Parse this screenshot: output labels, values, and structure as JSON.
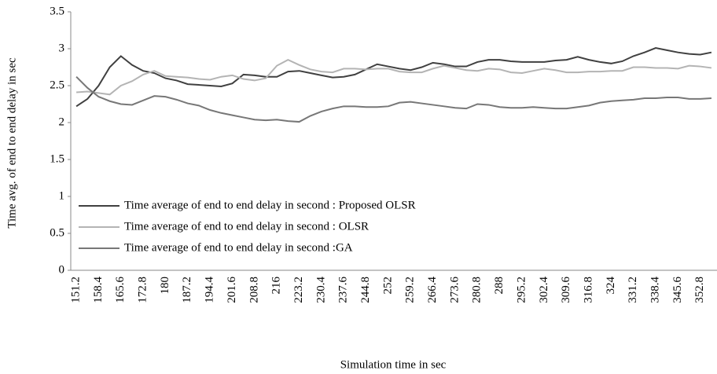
{
  "chart_data": {
    "type": "line",
    "x_label": "Simulation time in sec",
    "y_label": "Time avg. of end to end delay in sec",
    "categories": [
      "151.2",
      null,
      "158.4",
      null,
      "165.6",
      null,
      "172.8",
      null,
      "180",
      null,
      "187.2",
      null,
      "194.4",
      null,
      "201.6",
      null,
      "208.8",
      null,
      "216",
      null,
      "223.2",
      null,
      "230.4",
      null,
      "237.6",
      null,
      "244.8",
      null,
      "252",
      null,
      "259.2",
      null,
      "266.4",
      null,
      "273.6",
      null,
      "280.8",
      null,
      "288",
      null,
      "295.2",
      null,
      "302.4",
      null,
      "309.6",
      null,
      "316.8",
      null,
      "324",
      null,
      "331.2",
      null,
      "338.4",
      null,
      "345.6",
      null,
      "352.8",
      null
    ],
    "series": [
      {
        "name": "Time average of end to end delay in second : Proposed OLSR",
        "color": "#404040",
        "values": [
          2.22,
          2.32,
          2.5,
          2.75,
          2.9,
          2.78,
          2.7,
          2.67,
          2.6,
          2.57,
          2.52,
          2.51,
          2.5,
          2.49,
          2.53,
          2.65,
          2.64,
          2.62,
          2.62,
          2.69,
          2.7,
          2.67,
          2.64,
          2.61,
          2.62,
          2.65,
          2.72,
          2.79,
          2.76,
          2.73,
          2.71,
          2.75,
          2.81,
          2.79,
          2.76,
          2.76,
          2.82,
          2.85,
          2.85,
          2.83,
          2.82,
          2.82,
          2.82,
          2.84,
          2.85,
          2.89,
          2.85,
          2.82,
          2.8,
          2.83,
          2.9,
          2.95,
          3.01,
          2.98,
          2.95,
          2.93,
          2.92,
          2.95
        ]
      },
      {
        "name": "Time average of end to end delay in second : OLSR",
        "color": "#b4b4b4",
        "values": [
          2.41,
          2.42,
          2.4,
          2.38,
          2.5,
          2.56,
          2.65,
          2.7,
          2.63,
          2.62,
          2.61,
          2.59,
          2.58,
          2.62,
          2.64,
          2.59,
          2.57,
          2.6,
          2.77,
          2.85,
          2.78,
          2.72,
          2.69,
          2.68,
          2.73,
          2.73,
          2.72,
          2.73,
          2.73,
          2.69,
          2.68,
          2.68,
          2.73,
          2.77,
          2.74,
          2.71,
          2.7,
          2.73,
          2.72,
          2.68,
          2.67,
          2.7,
          2.73,
          2.71,
          2.68,
          2.68,
          2.69,
          2.69,
          2.7,
          2.7,
          2.75,
          2.75,
          2.74,
          2.74,
          2.73,
          2.77,
          2.76,
          2.74
        ]
      },
      {
        "name": "Time average of end to end delay in second :GA",
        "color": "#777777",
        "values": [
          2.62,
          2.47,
          2.35,
          2.29,
          2.25,
          2.24,
          2.3,
          2.36,
          2.35,
          2.31,
          2.26,
          2.23,
          2.17,
          2.13,
          2.1,
          2.07,
          2.04,
          2.03,
          2.04,
          2.02,
          2.01,
          2.09,
          2.15,
          2.19,
          2.22,
          2.22,
          2.21,
          2.21,
          2.22,
          2.27,
          2.28,
          2.26,
          2.24,
          2.22,
          2.2,
          2.19,
          2.25,
          2.24,
          2.21,
          2.2,
          2.2,
          2.21,
          2.2,
          2.19,
          2.19,
          2.21,
          2.23,
          2.27,
          2.29,
          2.3,
          2.31,
          2.33,
          2.33,
          2.34,
          2.34,
          2.32,
          2.32,
          2.33
        ]
      }
    ],
    "ylim": [
      0,
      3.5
    ],
    "yticks": [
      0,
      0.5,
      1,
      1.5,
      2,
      2.5,
      3,
      3.5
    ],
    "grid": false,
    "legend": "lower-left"
  }
}
